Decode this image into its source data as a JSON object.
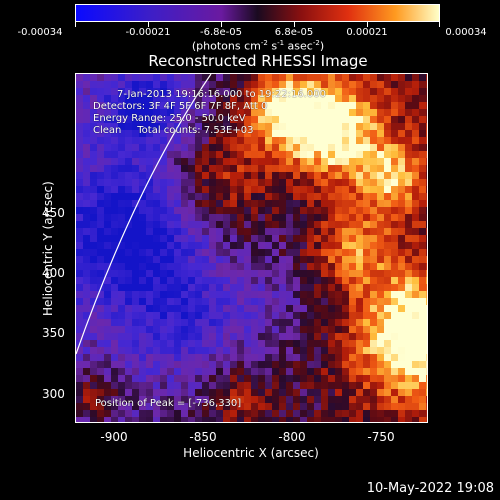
{
  "colorbar": {
    "tick_labels": [
      "-0.00034",
      "-0.00021",
      "-6.8e-05",
      "6.8e-05",
      "0.00021",
      "0.00034"
    ],
    "units_prefix": "(photons cm",
    "units_exp1": "-2",
    "units_mid": " s",
    "units_exp2": "-1",
    "units_mid2": " asec",
    "units_exp3": "-2",
    "units_suffix": ")"
  },
  "title": "Reconstructed RHESSI Image",
  "info": {
    "time": "7-Jan-2013 19:16:16.000 to 19:22:16.000",
    "detectors": "Detectors: 3F 4F 5F 6F 7F 8F, Att 0",
    "energy": "Energy Range: 25.0 - 50.0 keV",
    "clean": "Clean     Total counts: 7.53E+03",
    "peak": "Position of Peak = [-736,330]"
  },
  "axes": {
    "xlabel": "Heliocentric X (arcsec)",
    "ylabel": "Heliocentric Y (arcsec)",
    "xticks": [
      "-900",
      "-850",
      "-800",
      "-750"
    ],
    "yticks": [
      "300",
      "350",
      "400",
      "450"
    ],
    "xlim": [
      -920,
      -720
    ],
    "ylim": [
      285,
      475
    ]
  },
  "timestamp": "10-May-2022 19:08"
}
